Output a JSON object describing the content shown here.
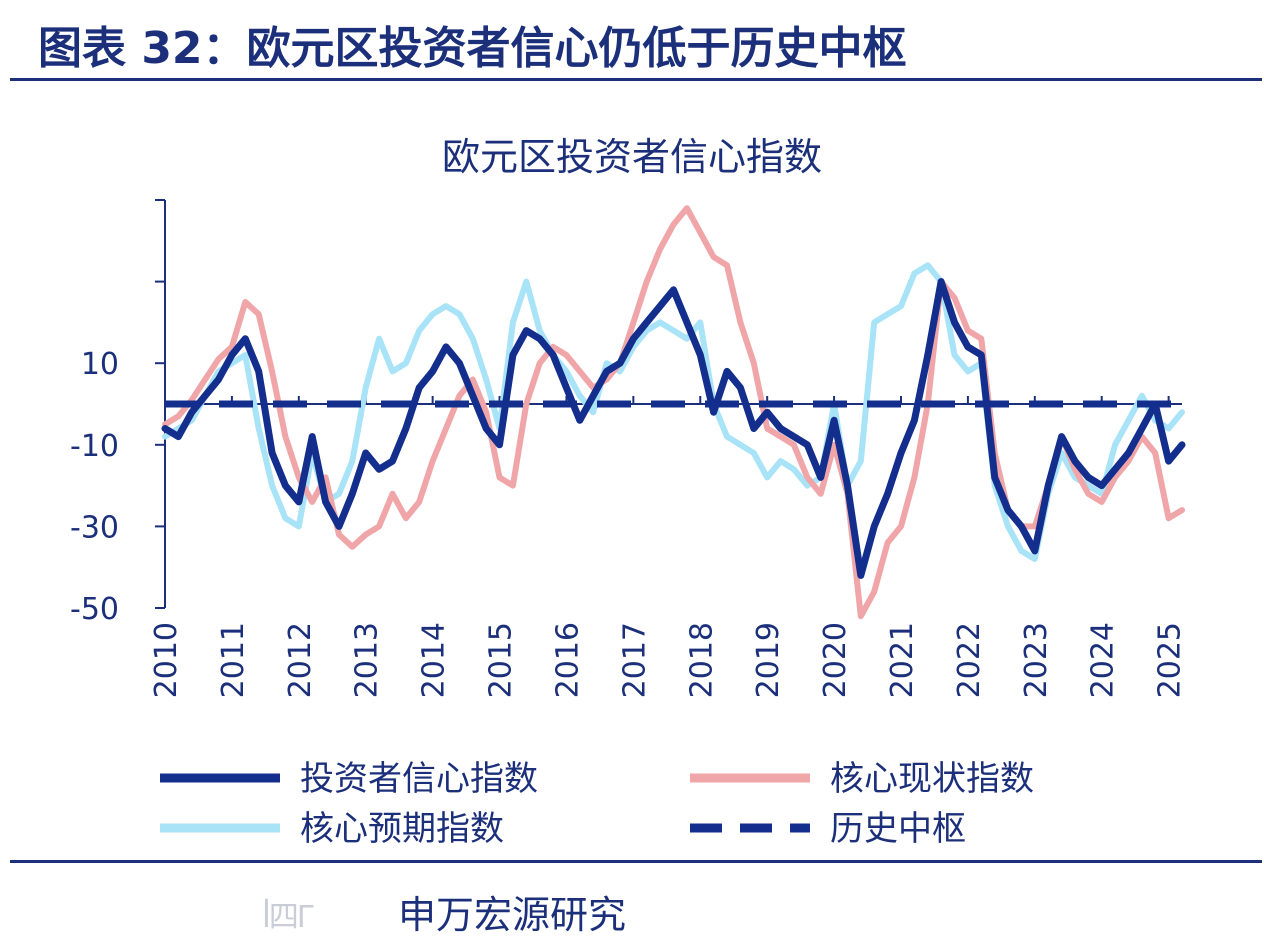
{
  "figure": {
    "title": "图表 32：欧元区投资者信心仍低于历史中枢",
    "source_logo_text": "ꟾ四Г",
    "source": "申万宏源研究"
  },
  "colors": {
    "brand": "#1b2f7a",
    "investor_confidence": "#132e8c",
    "current_situation": "#f0a6a8",
    "expectations": "#a9e3f7",
    "historical_center": "#132e8c"
  },
  "chart_data": {
    "type": "line",
    "title": "欧元区投资者信心指数",
    "xlabel": "",
    "ylabel": "",
    "x_ticks": [
      "2010",
      "2011",
      "2012",
      "2013",
      "2014",
      "2015",
      "2016",
      "2017",
      "2018",
      "2019",
      "2020",
      "2021",
      "2022",
      "2023",
      "2024",
      "2025"
    ],
    "y_ticks": [
      10,
      -10,
      -30,
      -50
    ],
    "ylim": [
      -50,
      50
    ],
    "xlim": [
      2010.0,
      2025.2
    ],
    "grid": false,
    "legend_position": "bottom",
    "series": [
      {
        "name": "投资者信心指数",
        "color": "#132e8c",
        "style": "solid",
        "x": [
          2010.0,
          2010.2,
          2010.4,
          2010.6,
          2010.8,
          2011.0,
          2011.2,
          2011.4,
          2011.6,
          2011.8,
          2012.0,
          2012.2,
          2012.4,
          2012.6,
          2012.8,
          2013.0,
          2013.2,
          2013.4,
          2013.6,
          2013.8,
          2014.0,
          2014.2,
          2014.4,
          2014.6,
          2014.8,
          2015.0,
          2015.2,
          2015.4,
          2015.6,
          2015.8,
          2016.0,
          2016.2,
          2016.4,
          2016.6,
          2016.8,
          2017.0,
          2017.2,
          2017.4,
          2017.6,
          2017.8,
          2018.0,
          2018.2,
          2018.4,
          2018.6,
          2018.8,
          2019.0,
          2019.2,
          2019.4,
          2019.6,
          2019.8,
          2020.0,
          2020.2,
          2020.4,
          2020.6,
          2020.8,
          2021.0,
          2021.2,
          2021.4,
          2021.6,
          2021.8,
          2022.0,
          2022.2,
          2022.4,
          2022.6,
          2022.8,
          2023.0,
          2023.2,
          2023.4,
          2023.6,
          2023.8,
          2024.0,
          2024.2,
          2024.4,
          2024.6,
          2024.8,
          2025.0,
          2025.2
        ],
        "y": [
          -6,
          -8,
          -2,
          2,
          6,
          12,
          16,
          8,
          -12,
          -20,
          -24,
          -8,
          -24,
          -30,
          -22,
          -12,
          -16,
          -14,
          -6,
          4,
          8,
          14,
          10,
          2,
          -6,
          -10,
          12,
          18,
          16,
          12,
          4,
          -4,
          2,
          8,
          10,
          16,
          20,
          24,
          28,
          20,
          12,
          -2,
          8,
          4,
          -6,
          -2,
          -6,
          -8,
          -10,
          -18,
          -4,
          -20,
          -42,
          -30,
          -22,
          -12,
          -4,
          12,
          30,
          20,
          14,
          12,
          -18,
          -26,
          -30,
          -36,
          -20,
          -8,
          -14,
          -18,
          -20,
          -16,
          -12,
          -6,
          0,
          -14,
          -10
        ]
      },
      {
        "name": "核心现状指数",
        "color": "#f0a6a8",
        "style": "solid",
        "x": [
          2010.0,
          2010.2,
          2010.4,
          2010.6,
          2010.8,
          2011.0,
          2011.2,
          2011.4,
          2011.6,
          2011.8,
          2012.0,
          2012.2,
          2012.4,
          2012.6,
          2012.8,
          2013.0,
          2013.2,
          2013.4,
          2013.6,
          2013.8,
          2014.0,
          2014.2,
          2014.4,
          2014.6,
          2014.8,
          2015.0,
          2015.2,
          2015.4,
          2015.6,
          2015.8,
          2016.0,
          2016.2,
          2016.4,
          2016.6,
          2016.8,
          2017.0,
          2017.2,
          2017.4,
          2017.6,
          2017.8,
          2018.0,
          2018.2,
          2018.4,
          2018.6,
          2018.8,
          2019.0,
          2019.2,
          2019.4,
          2019.6,
          2019.8,
          2020.0,
          2020.2,
          2020.4,
          2020.6,
          2020.8,
          2021.0,
          2021.2,
          2021.4,
          2021.6,
          2021.8,
          2022.0,
          2022.2,
          2022.4,
          2022.6,
          2022.8,
          2023.0,
          2023.2,
          2023.4,
          2023.6,
          2023.8,
          2024.0,
          2024.2,
          2024.4,
          2024.6,
          2024.8,
          2025.0,
          2025.2
        ],
        "y": [
          -5,
          -3,
          1,
          6,
          11,
          14,
          25,
          22,
          8,
          -8,
          -18,
          -24,
          -18,
          -32,
          -35,
          -32,
          -30,
          -22,
          -28,
          -24,
          -14,
          -6,
          2,
          6,
          -2,
          -18,
          -20,
          0,
          10,
          14,
          12,
          8,
          4,
          6,
          10,
          20,
          30,
          38,
          44,
          48,
          42,
          36,
          34,
          20,
          10,
          -6,
          -8,
          -10,
          -18,
          -22,
          -10,
          -22,
          -52,
          -46,
          -34,
          -30,
          -18,
          0,
          30,
          26,
          18,
          16,
          -12,
          -26,
          -30,
          -30,
          -20,
          -8,
          -16,
          -22,
          -24,
          -18,
          -14,
          -8,
          -12,
          -28,
          -26
        ]
      },
      {
        "name": "核心预期指数",
        "color": "#a9e3f7",
        "style": "solid",
        "x": [
          2010.0,
          2010.2,
          2010.4,
          2010.6,
          2010.8,
          2011.0,
          2011.2,
          2011.4,
          2011.6,
          2011.8,
          2012.0,
          2012.2,
          2012.4,
          2012.6,
          2012.8,
          2013.0,
          2013.2,
          2013.4,
          2013.6,
          2013.8,
          2014.0,
          2014.2,
          2014.4,
          2014.6,
          2014.8,
          2015.0,
          2015.2,
          2015.4,
          2015.6,
          2015.8,
          2016.0,
          2016.2,
          2016.4,
          2016.6,
          2016.8,
          2017.0,
          2017.2,
          2017.4,
          2017.6,
          2017.8,
          2018.0,
          2018.2,
          2018.4,
          2018.6,
          2018.8,
          2019.0,
          2019.2,
          2019.4,
          2019.6,
          2019.8,
          2020.0,
          2020.2,
          2020.4,
          2020.6,
          2020.8,
          2021.0,
          2021.2,
          2021.4,
          2021.6,
          2021.8,
          2022.0,
          2022.2,
          2022.4,
          2022.6,
          2022.8,
          2023.0,
          2023.2,
          2023.4,
          2023.6,
          2023.8,
          2024.0,
          2024.2,
          2024.4,
          2024.6,
          2024.8,
          2025.0,
          2025.2
        ],
        "y": [
          -8,
          -6,
          -4,
          2,
          8,
          10,
          12,
          -6,
          -20,
          -28,
          -30,
          -12,
          -24,
          -22,
          -14,
          4,
          16,
          8,
          10,
          18,
          22,
          24,
          22,
          16,
          6,
          -6,
          20,
          30,
          18,
          12,
          8,
          2,
          -2,
          10,
          8,
          14,
          18,
          20,
          18,
          16,
          20,
          0,
          -8,
          -10,
          -12,
          -18,
          -14,
          -16,
          -20,
          -18,
          0,
          -20,
          -14,
          20,
          22,
          24,
          32,
          34,
          30,
          12,
          8,
          10,
          -20,
          -30,
          -36,
          -38,
          -22,
          -12,
          -18,
          -20,
          -22,
          -10,
          -4,
          2,
          -4,
          -6,
          -2
        ]
      },
      {
        "name": "历史中枢",
        "color": "#132e8c",
        "style": "dashed",
        "x": [
          2010.0,
          2025.2
        ],
        "y": [
          0,
          0
        ]
      }
    ]
  }
}
